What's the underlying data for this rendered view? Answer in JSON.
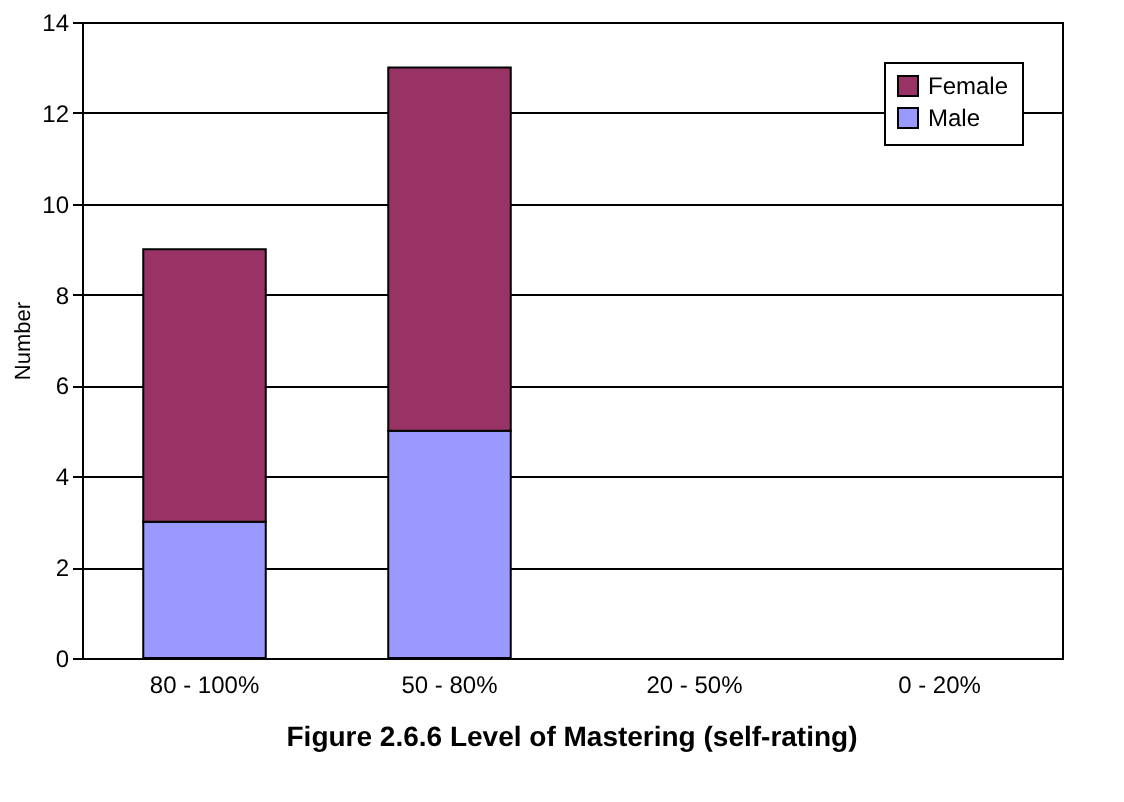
{
  "chart_data": {
    "type": "bar",
    "title": "Figure 2.6.6    Level of Mastering (self-rating)",
    "ylabel": "Number",
    "categories": [
      "80 - 100%",
      "50 - 80%",
      "20 - 50%",
      "0 - 20%"
    ],
    "stacked": true,
    "series": [
      {
        "name": "Male",
        "color": "#9999ff",
        "values": [
          3,
          5,
          0,
          0
        ]
      },
      {
        "name": "Female",
        "color": "#993366",
        "values": [
          6,
          8,
          0,
          0
        ]
      }
    ],
    "ylim": [
      0,
      14
    ],
    "yticks": [
      0,
      2,
      4,
      6,
      8,
      10,
      12,
      14
    ],
    "grid": "y",
    "legend": "top right"
  }
}
